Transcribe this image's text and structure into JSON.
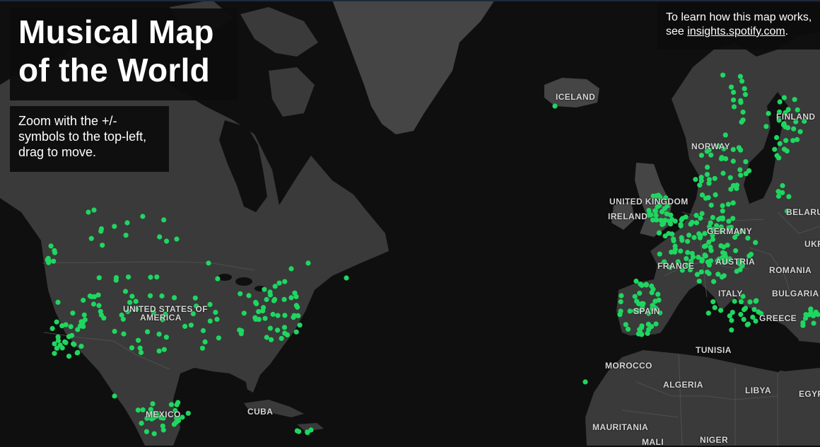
{
  "title": "Musical Map of the World",
  "help_text": "Zoom with the +/- symbols to the top-left, drag to move.",
  "info": {
    "prefix": "To learn how this map works,",
    "see": "see ",
    "link_text": "insights.spotify.com",
    "suffix": "."
  },
  "colors": {
    "water": "#0f0f0f",
    "land": "#3a3a3a",
    "land_light": "#454545",
    "border": "#555555",
    "city_marker": "#1ed760",
    "panel": "#0c0c0c"
  },
  "country_labels": {
    "iceland": "ICELAND",
    "finland": "FINLAND",
    "norway": "NORWAY",
    "united_kingdom": "UNITED KINGDOM",
    "ireland": "IRELAND",
    "belarus": "BELARUS",
    "germany": "GERMANY",
    "ukraine": "UKR",
    "france": "FRANCE",
    "austria": "AUSTRIA",
    "romania": "ROMANIA",
    "italy": "ITALY",
    "bulgaria": "BULGARIA",
    "spain": "SPAIN",
    "greece": "GREECE",
    "usa_line1": "UNITED STATES OF",
    "usa_line2": "AMERICA",
    "tunisia": "TUNISIA",
    "morocco": "MOROCCO",
    "algeria": "ALGERIA",
    "libya": "LIBYA",
    "egypt": "EGYP",
    "mexico": "MEXICO",
    "cuba": "CUBA",
    "mauritania": "MAURITANIA",
    "mali": "MALI",
    "niger": "NIGER"
  }
}
